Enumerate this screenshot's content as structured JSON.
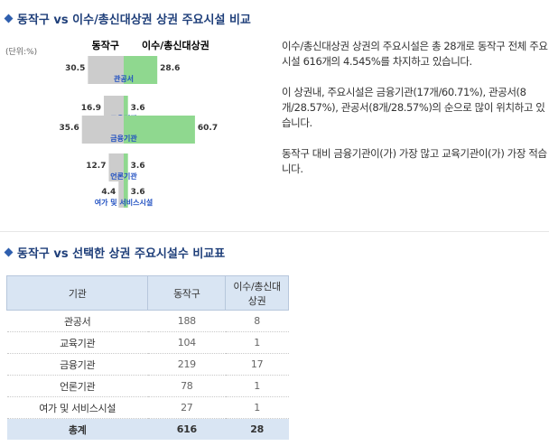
{
  "section1": {
    "title": "동작구 vs 이수/총신대상권 상권 주요시설 비교"
  },
  "section2": {
    "title": "동작구 vs 선택한 상권 주요시설수 비교표"
  },
  "unit_label": "(단위:%)",
  "colors": {
    "left_bar": "#cccccc",
    "right_bar": "#8fd88f",
    "category_text": "#1f4fc1",
    "heading": "#1f3f7a"
  },
  "chart_data": {
    "type": "bar",
    "orientation": "horizontal-butterfly",
    "series": [
      {
        "name": "동작구",
        "values": [
          30.5,
          16.9,
          35.6,
          12.7,
          4.4
        ]
      },
      {
        "name": "이수/총신대상권",
        "values": [
          28.6,
          3.6,
          60.7,
          3.6,
          3.6
        ]
      }
    ],
    "categories": [
      "관공서",
      "교육기관",
      "금융기관",
      "언론기관",
      "여가 및 서비스시설"
    ],
    "unit": "%"
  },
  "description": [
    "이수/총신대상권 상권의 주요시설은 총 28개로 동작구 전체 주요시설 616개의 4.545%를 차지하고 있습니다.",
    "이 상권내, 주요시설은 금융기관(17개/60.71%), 관공서(8개/28.57%), 관공서(8개/28.57%)의 순으로 많이 위치하고 있습니다.",
    "동작구 대비 금융기관이(가) 가장 많고 교육기관이(가) 가장 적습니다."
  ],
  "table": {
    "headers": [
      "기관",
      "동작구",
      "이수/총신대\n상권"
    ],
    "rows": [
      [
        "관공서",
        "188",
        "8"
      ],
      [
        "교육기관",
        "104",
        "1"
      ],
      [
        "금융기관",
        "219",
        "17"
      ],
      [
        "언론기관",
        "78",
        "1"
      ],
      [
        "여가 및 서비스시설",
        "27",
        "1"
      ]
    ],
    "total": [
      "총계",
      "616",
      "28"
    ]
  }
}
